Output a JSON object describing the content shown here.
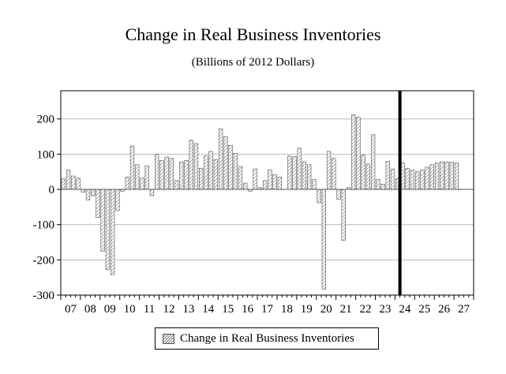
{
  "chart_data": {
    "type": "bar",
    "title": "Change in Real Business Inventories",
    "subtitle": "(Billions of 2012 Dollars)",
    "frequency": "quarterly",
    "x_start": "2007-Q1",
    "x_tick_labels": [
      "07",
      "08",
      "09",
      "10",
      "11",
      "12",
      "13",
      "14",
      "15",
      "16",
      "17",
      "18",
      "19",
      "20",
      "21",
      "22",
      "23",
      "24",
      "25",
      "26",
      "27"
    ],
    "y_tick_labels": [
      "200",
      "100",
      "0",
      "-100",
      "-200",
      "-300"
    ],
    "ylim": [
      -300,
      280
    ],
    "grid": true,
    "legend_position": "bottom",
    "forecast_marker": "2024-Q2",
    "series": [
      {
        "name": "Change in Real Business Inventories",
        "values": [
          30,
          55,
          38,
          32,
          -8,
          -30,
          -18,
          -80,
          -175,
          -228,
          -242,
          -60,
          -5,
          35,
          123,
          70,
          32,
          67,
          -18,
          100,
          82,
          92,
          88,
          25,
          78,
          82,
          140,
          130,
          60,
          95,
          108,
          85,
          172,
          150,
          125,
          102,
          65,
          18,
          -5,
          58,
          5,
          25,
          56,
          42,
          35,
          0,
          95,
          93,
          117,
          78,
          70,
          28,
          -38,
          -283,
          108,
          88,
          -28,
          -145,
          5,
          212,
          205,
          97,
          72,
          155,
          28,
          15,
          80,
          58,
          30,
          75,
          60,
          55,
          50,
          55,
          63,
          70,
          75,
          78,
          78,
          77,
          75
        ]
      }
    ]
  }
}
